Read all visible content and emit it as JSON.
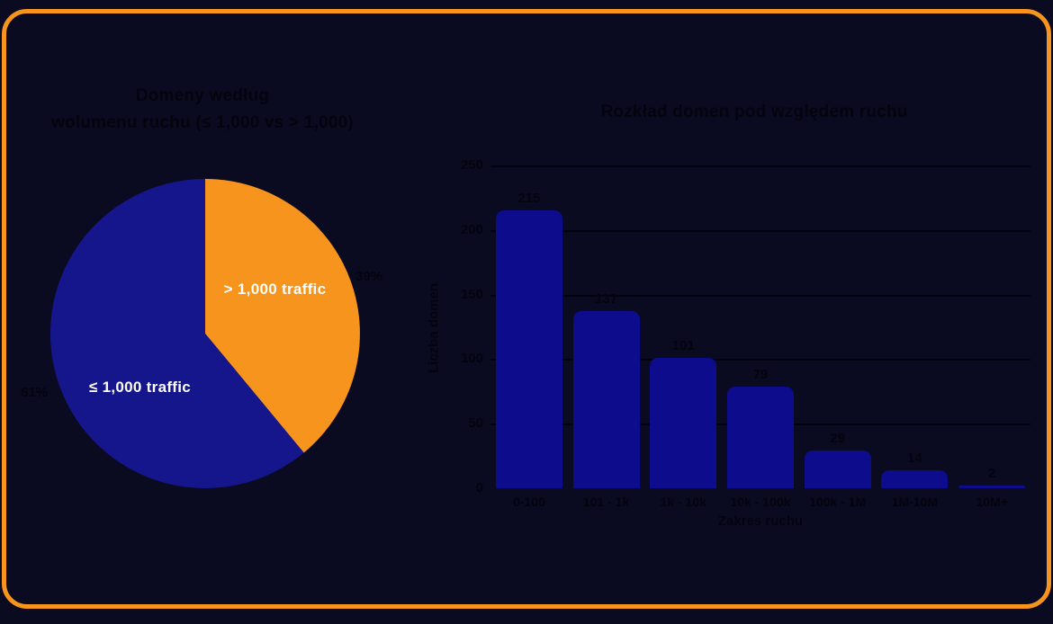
{
  "page": {
    "background_color": "#0a0a21",
    "border_color": "#f7941d"
  },
  "pie": {
    "title_lines": [
      "Domeny według",
      "wolumenu ruchu (≤ 1,000 vs > 1,000)"
    ]
  },
  "chart_data": [
    {
      "type": "pie",
      "title": "Domeny według wolumenu ruchu (≤ 1,000 vs > 1,000)",
      "start_angle_deg": 0,
      "direction": "clockwise",
      "slices": [
        {
          "label": "> 1,000 traffic",
          "value_pct": 39,
          "pct_label": "39%",
          "color": "#f7941d",
          "label_color": "#ffffff"
        },
        {
          "label": "≤ 1,000 traffic",
          "value_pct": 61,
          "pct_label": "61%",
          "color": "#16168c",
          "label_color": "#ffffff"
        }
      ]
    },
    {
      "type": "bar",
      "title": "Rozkład domen pod względem ruchu",
      "categories": [
        "0-100",
        "101 - 1k",
        "1k - 10k",
        "10k - 100k",
        "100k - 1M",
        "1M-10M",
        "10M+"
      ],
      "values": [
        215,
        137,
        101,
        79,
        29,
        14,
        2
      ],
      "xlabel": "Zakres ruchu",
      "ylabel": "Liczba domen",
      "ylim": [
        0,
        250
      ],
      "yticks": [
        0,
        50,
        100,
        150,
        200,
        250
      ],
      "bar_color": "#0c0c8c",
      "grid": true,
      "legend": "none"
    }
  ]
}
